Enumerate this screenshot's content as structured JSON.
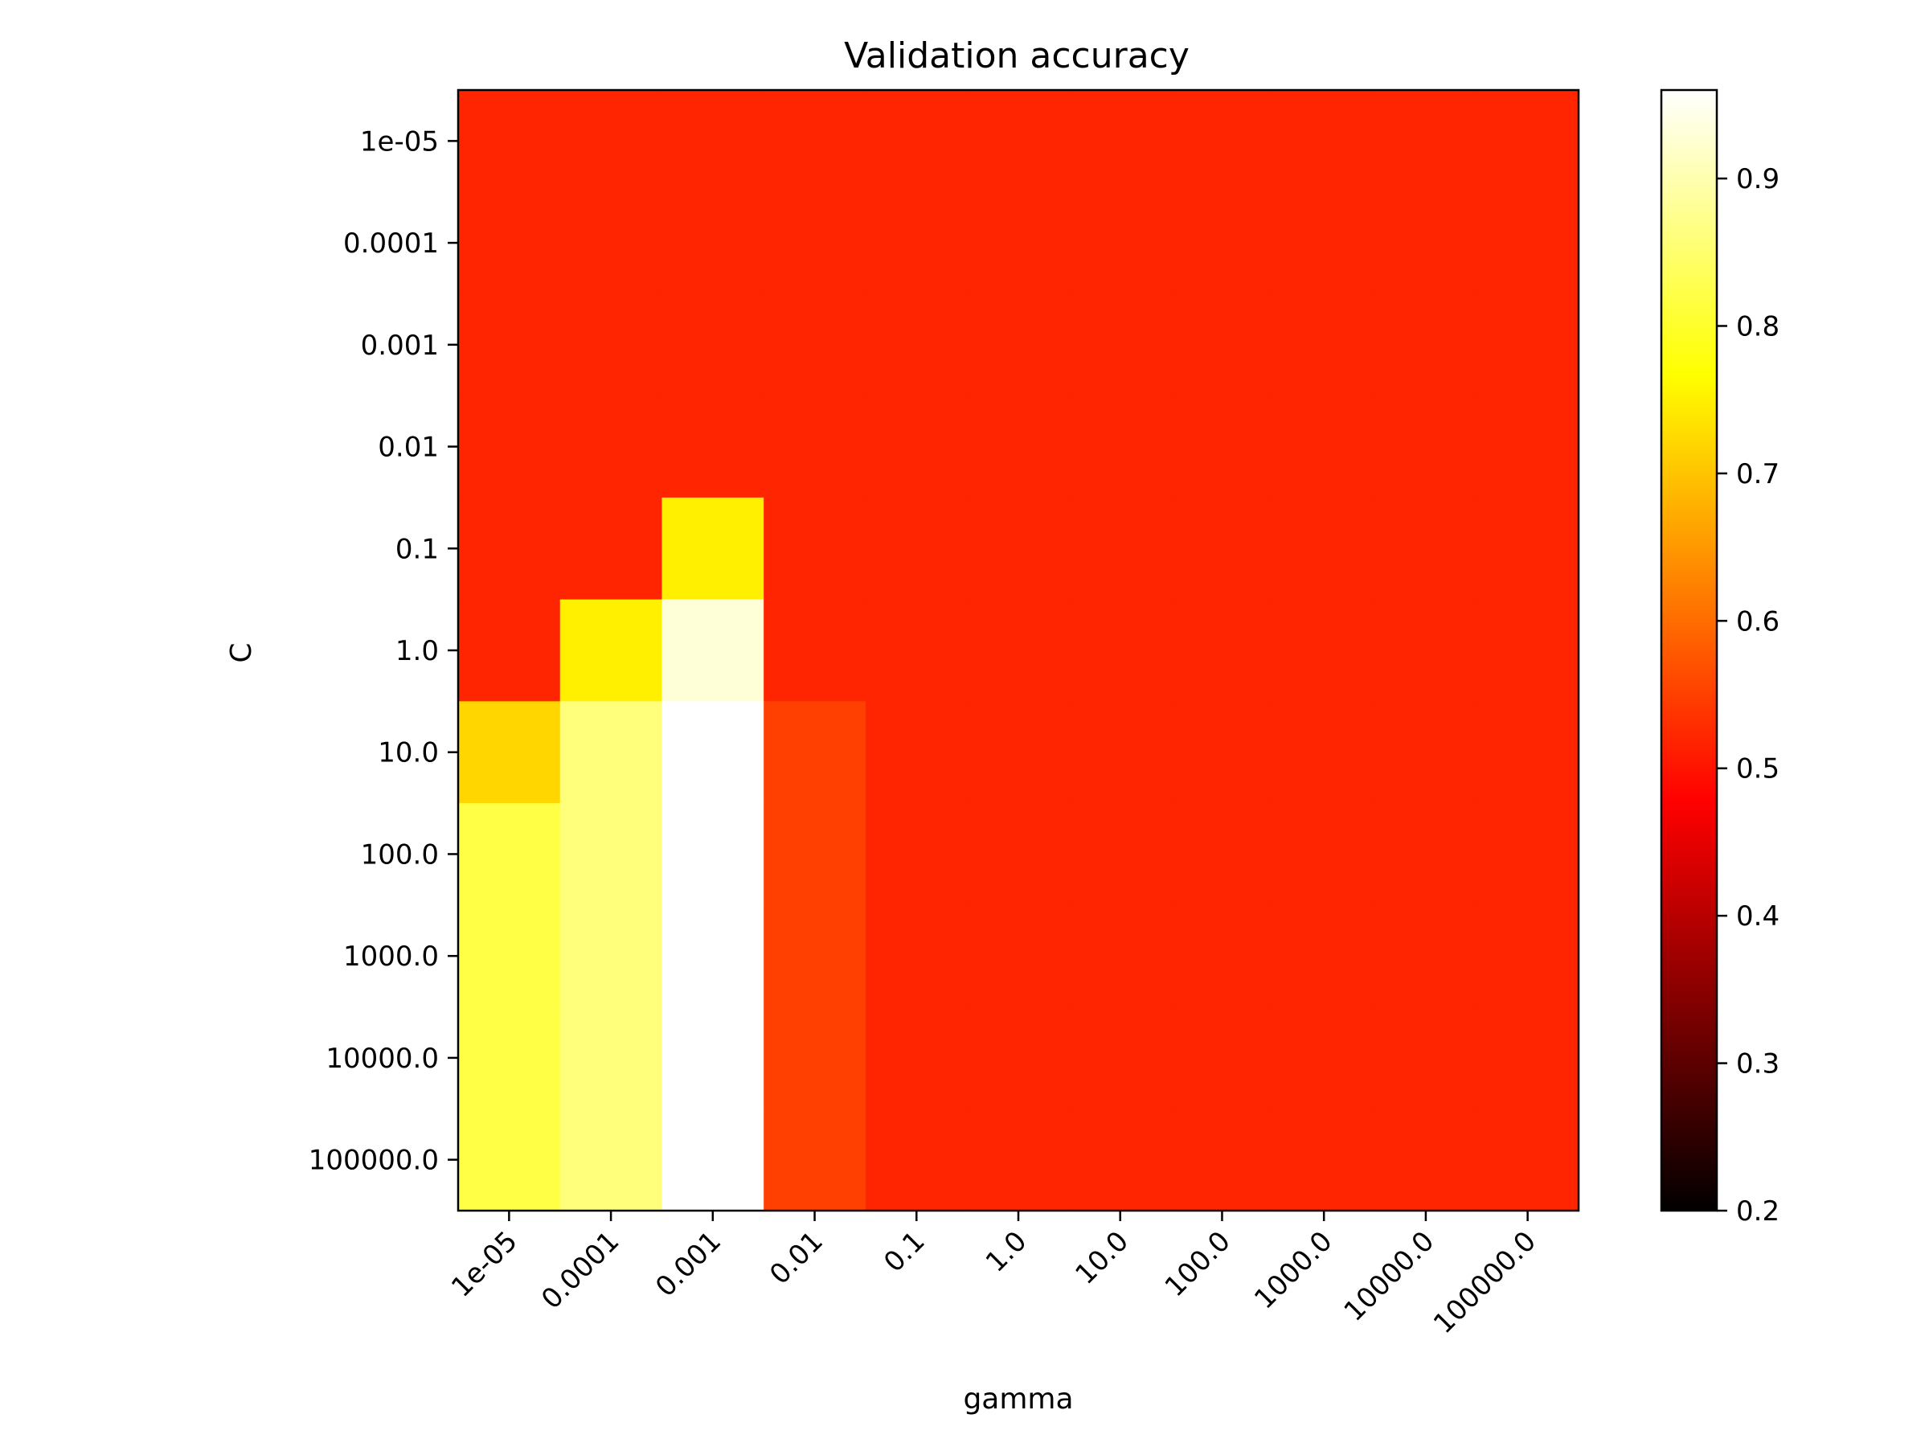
{
  "chart_data": {
    "type": "heatmap",
    "title": "Validation accuracy",
    "xlabel": "gamma",
    "ylabel": "C",
    "x_categories": [
      "1e-05",
      "0.0001",
      "0.001",
      "0.01",
      "0.1",
      "1.0",
      "10.0",
      "100.0",
      "1000.0",
      "10000.0",
      "100000.0"
    ],
    "y_categories": [
      "1e-05",
      "0.0001",
      "0.001",
      "0.01",
      "0.1",
      "1.0",
      "10.0",
      "100.0",
      "1000.0",
      "10000.0",
      "100000.0"
    ],
    "values": [
      [
        0.52,
        0.52,
        0.52,
        0.52,
        0.52,
        0.52,
        0.52,
        0.52,
        0.52,
        0.52,
        0.52
      ],
      [
        0.52,
        0.52,
        0.52,
        0.52,
        0.52,
        0.52,
        0.52,
        0.52,
        0.52,
        0.52,
        0.52
      ],
      [
        0.52,
        0.52,
        0.52,
        0.52,
        0.52,
        0.52,
        0.52,
        0.52,
        0.52,
        0.52,
        0.52
      ],
      [
        0.52,
        0.52,
        0.52,
        0.52,
        0.52,
        0.52,
        0.52,
        0.52,
        0.52,
        0.52,
        0.52
      ],
      [
        0.52,
        0.52,
        0.75,
        0.52,
        0.52,
        0.52,
        0.52,
        0.52,
        0.52,
        0.52,
        0.52
      ],
      [
        0.52,
        0.75,
        0.93,
        0.52,
        0.52,
        0.52,
        0.52,
        0.52,
        0.52,
        0.52,
        0.52
      ],
      [
        0.72,
        0.86,
        0.97,
        0.55,
        0.52,
        0.52,
        0.52,
        0.52,
        0.52,
        0.52,
        0.52
      ],
      [
        0.82,
        0.86,
        0.97,
        0.55,
        0.52,
        0.52,
        0.52,
        0.52,
        0.52,
        0.52,
        0.52
      ],
      [
        0.82,
        0.86,
        0.97,
        0.55,
        0.52,
        0.52,
        0.52,
        0.52,
        0.52,
        0.52,
        0.52
      ],
      [
        0.82,
        0.86,
        0.97,
        0.55,
        0.52,
        0.52,
        0.52,
        0.52,
        0.52,
        0.52,
        0.52
      ],
      [
        0.82,
        0.86,
        0.97,
        0.55,
        0.52,
        0.52,
        0.52,
        0.52,
        0.52,
        0.52,
        0.52
      ]
    ],
    "colormap": "hot",
    "vmin": 0.2,
    "vmax": 0.96,
    "colorbar_ticks": [
      "0.2",
      "0.3",
      "0.4",
      "0.5",
      "0.6",
      "0.7",
      "0.8",
      "0.9"
    ],
    "grid": false,
    "colorbar_position": "right"
  }
}
